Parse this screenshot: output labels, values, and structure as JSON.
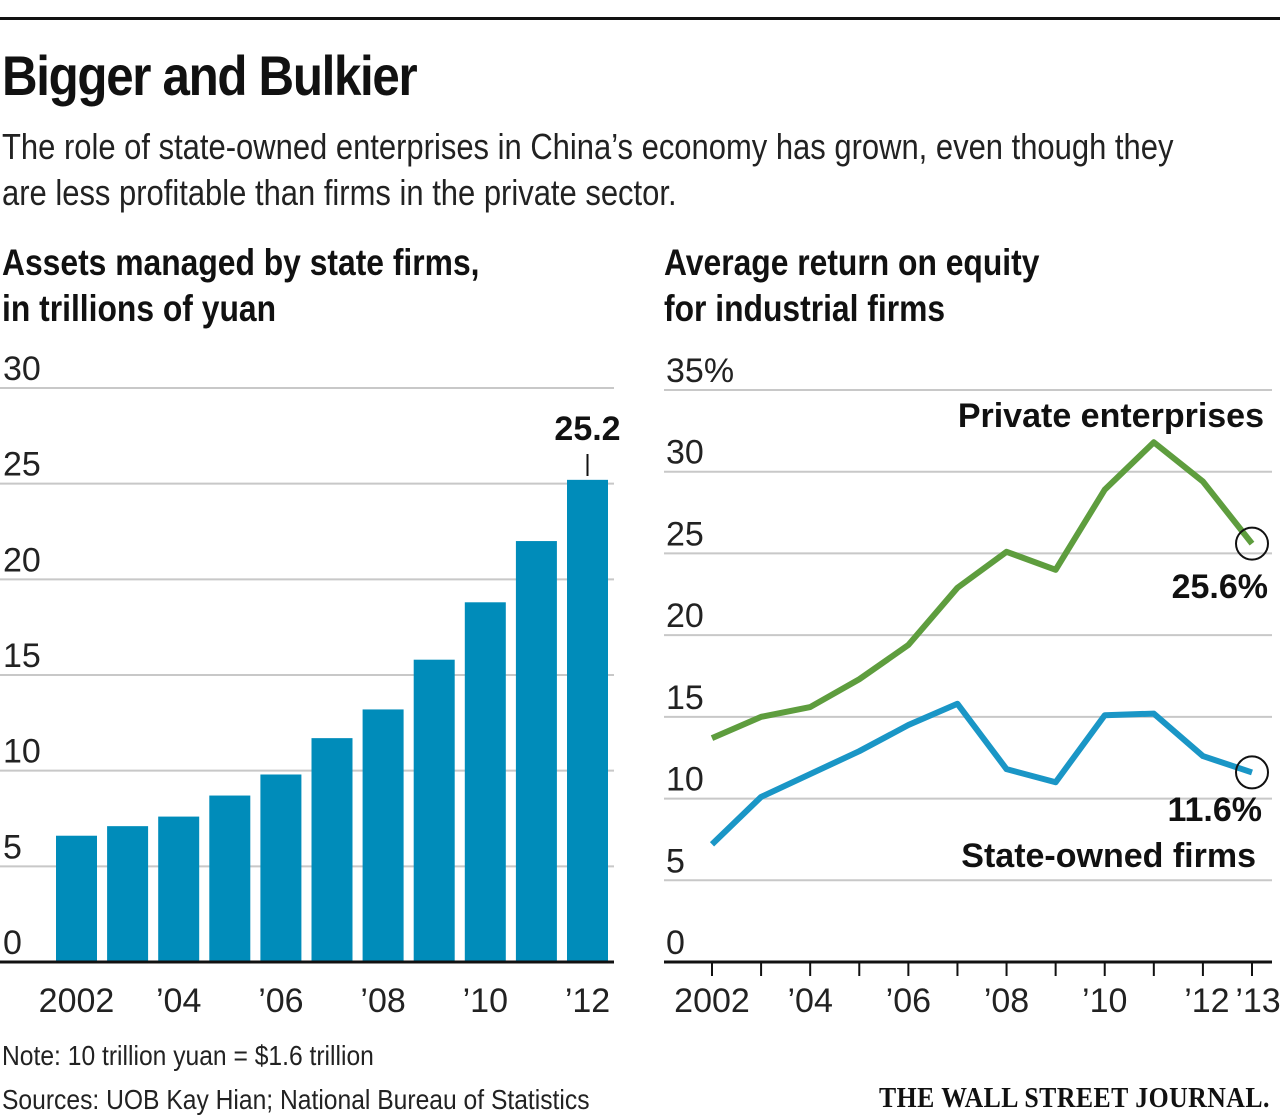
{
  "header": {
    "title": "Bigger and Bulkier",
    "subtitle": "The role of state-owned enterprises in China’s economy has grown, even though they are less profitable than firms in the private sector."
  },
  "colors": {
    "bar": "#008cba",
    "private": "#5e9d3e",
    "state": "#1a96c6",
    "grid": "#c8c8c8",
    "axis": "#111111"
  },
  "chart_data": [
    {
      "type": "bar",
      "title_line1": "Assets managed by state firms,",
      "title_line2": "in trillions of yuan",
      "categories": [
        "2002",
        "2003",
        "2004",
        "2005",
        "2006",
        "2007",
        "2008",
        "2009",
        "2010",
        "2011",
        "2012"
      ],
      "values": [
        6.6,
        7.1,
        7.6,
        8.7,
        9.8,
        11.7,
        13.2,
        15.8,
        18.8,
        22.0,
        25.2
      ],
      "ylim": [
        0,
        30
      ],
      "yticks": [
        0,
        5,
        10,
        15,
        20,
        25,
        30
      ],
      "ytick_labels": [
        "0",
        "5",
        "10",
        "15",
        "20",
        "25",
        "30"
      ],
      "xtick_labels": [
        "2002",
        "’04",
        "’06",
        "’08",
        "’10",
        "’12"
      ],
      "xtick_index": [
        0,
        2,
        4,
        6,
        8,
        10
      ],
      "annotation": "25.2",
      "annotation_index": 10
    },
    {
      "type": "line",
      "title_line1": "Average return on equity",
      "title_line2": "for industrial firms",
      "x": [
        2002,
        2003,
        2004,
        2005,
        2006,
        2007,
        2008,
        2009,
        2010,
        2011,
        2012,
        2013
      ],
      "series": [
        {
          "name": "Private enterprises",
          "values": [
            13.7,
            15.0,
            15.6,
            17.3,
            19.4,
            22.9,
            25.1,
            24.0,
            28.9,
            31.8,
            29.4,
            25.6
          ],
          "end_label": "25.6%"
        },
        {
          "name": "State-owned firms",
          "values": [
            7.2,
            10.1,
            11.5,
            12.9,
            14.5,
            15.8,
            11.8,
            11.0,
            15.1,
            15.2,
            12.6,
            11.6
          ],
          "end_label": "11.6%"
        }
      ],
      "ylim": [
        0,
        35
      ],
      "yticks": [
        0,
        5,
        10,
        15,
        20,
        25,
        30,
        35
      ],
      "ytick_labels": [
        "0",
        "5",
        "10",
        "15",
        "20",
        "25",
        "30",
        "35%"
      ],
      "xtick_labels": [
        "2002",
        "’04",
        "’06",
        "’08",
        "’10",
        "’12",
        "’13"
      ],
      "xtick_years": [
        2002,
        2004,
        2006,
        2008,
        2010,
        2012,
        2013
      ]
    }
  ],
  "footer": {
    "note": "Note: 10 trillion yuan = $1.6 trillion",
    "sources": "Sources: UOB Kay Hian; National Bureau of Statistics",
    "brand": "THE WALL STREET JOURNAL."
  }
}
